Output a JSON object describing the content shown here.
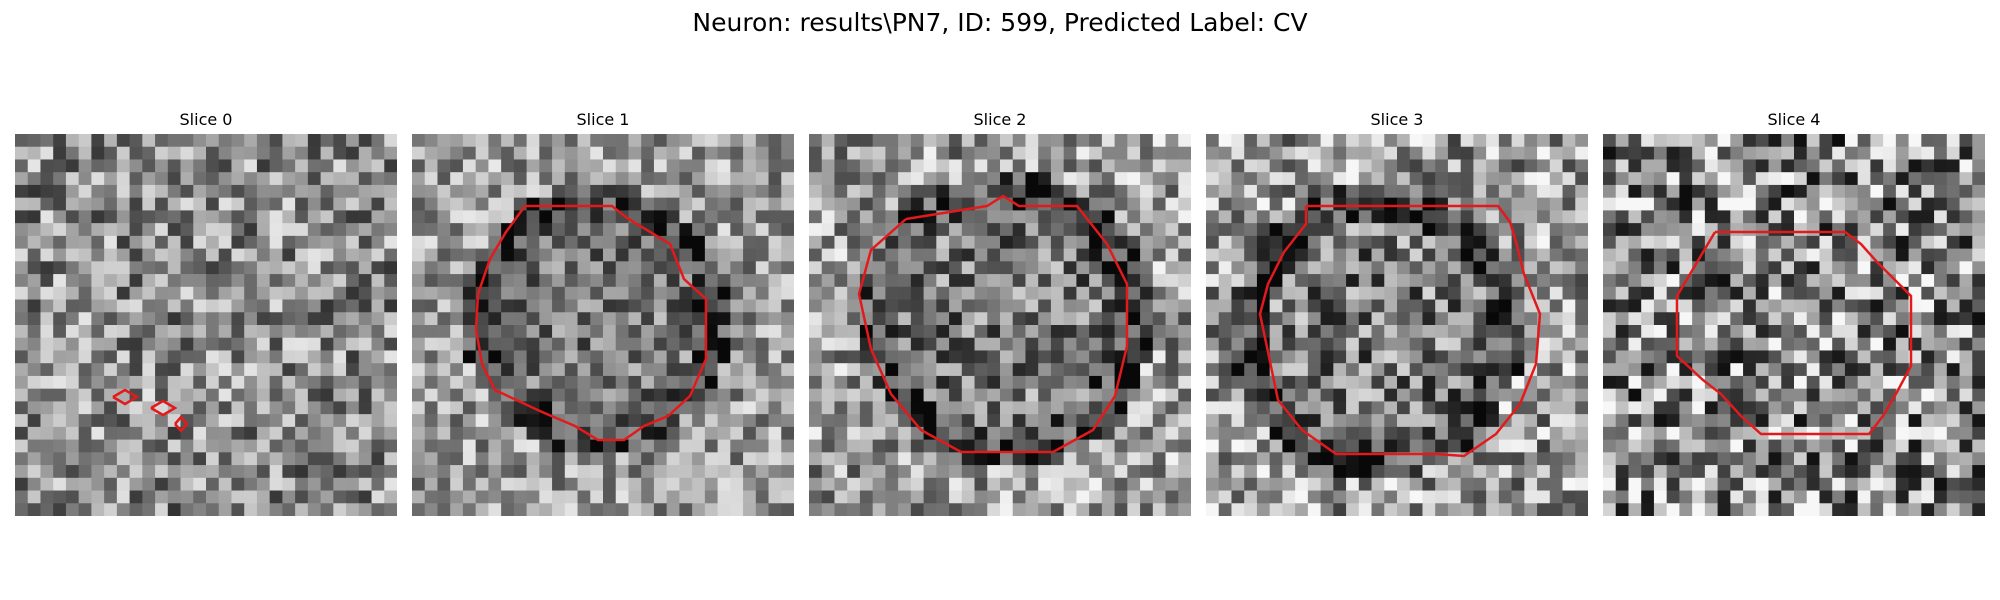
{
  "figure": {
    "suptitle": "Neuron: results\\PN7, ID: 599, Predicted Label: CV"
  },
  "panels": [
    {
      "title": "Slice 0",
      "contour_shape": "three small rings"
    },
    {
      "title": "Slice 1",
      "contour_shape": "large polygon"
    },
    {
      "title": "Slice 2",
      "contour_shape": "large polygon"
    },
    {
      "title": "Slice 3",
      "contour_shape": "large polygon"
    },
    {
      "title": "Slice 4",
      "contour_shape": "medium polygon"
    }
  ],
  "colors": {
    "contour": "#e31a1c",
    "background": "#ffffff"
  },
  "image_style": "grayscale pixel noise"
}
